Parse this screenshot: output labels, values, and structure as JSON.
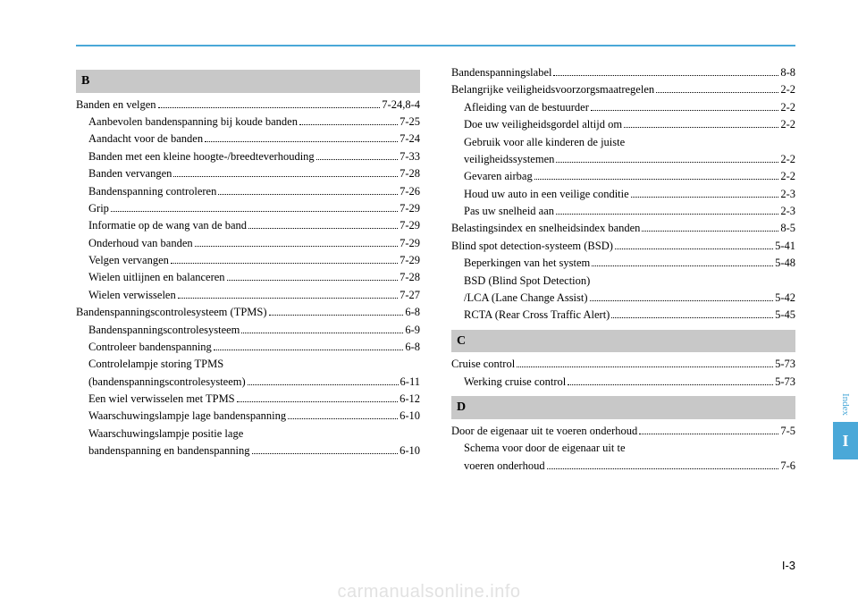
{
  "sideTab": {
    "indexLabel": "Index",
    "letter": "I"
  },
  "pageNumber": "I-3",
  "watermark": "carmanualsonline.info",
  "left": {
    "sectionB": {
      "letter": "B"
    },
    "entries": [
      {
        "label": "Banden en velgen",
        "page": "7-24,8-4",
        "sub": false
      },
      {
        "label": "Aanbevolen bandenspanning bij koude banden",
        "page": "7-25",
        "sub": true
      },
      {
        "label": "Aandacht voor de banden",
        "page": "7-24",
        "sub": true
      },
      {
        "label": "Banden met een kleine hoogte-/breedteverhouding",
        "page": "7-33",
        "sub": true
      },
      {
        "label": "Banden vervangen",
        "page": "7-28",
        "sub": true
      },
      {
        "label": "Bandenspanning controleren",
        "page": "7-26",
        "sub": true
      },
      {
        "label": "Grip",
        "page": "7-29",
        "sub": true
      },
      {
        "label": "Informatie op de wang van de band",
        "page": "7-29",
        "sub": true
      },
      {
        "label": "Onderhoud van banden",
        "page": "7-29",
        "sub": true
      },
      {
        "label": "Velgen vervangen",
        "page": "7-29",
        "sub": true
      },
      {
        "label": "Wielen uitlijnen en balanceren",
        "page": "7-28",
        "sub": true
      },
      {
        "label": "Wielen verwisselen",
        "page": "7-27",
        "sub": true
      },
      {
        "label": "Bandenspanningscontrolesysteem (TPMS)",
        "page": "6-8",
        "sub": false
      },
      {
        "label": "Bandenspanningscontrolesysteem",
        "page": "6-9",
        "sub": true
      },
      {
        "label": "Controleer bandenspanning",
        "page": "6-8",
        "sub": true
      }
    ],
    "multiline1": {
      "line1": "Controlelampje storing TPMS",
      "line2": "(bandenspanningscontrolesysteem)",
      "page": "6-11"
    },
    "entries2": [
      {
        "label": "Een wiel verwisselen met TPMS",
        "page": "6-12",
        "sub": true
      },
      {
        "label": "Waarschuwingslampje lage bandenspanning",
        "page": "6-10",
        "sub": true
      }
    ],
    "multiline2": {
      "line1": "Waarschuwingslampje positie lage",
      "line2": "bandenspanning en bandenspanning",
      "page": "6-10"
    }
  },
  "right": {
    "entriesTop": [
      {
        "label": "Bandenspanningslabel",
        "page": "8-8",
        "sub": false
      },
      {
        "label": "Belangrijke veiligheidsvoorzorgsmaatregelen",
        "page": "2-2",
        "sub": false
      },
      {
        "label": "Afleiding van de bestuurder",
        "page": "2-2",
        "sub": true
      },
      {
        "label": "Doe uw veiligheidsgordel altijd om",
        "page": "2-2",
        "sub": true
      }
    ],
    "multilineTop": {
      "line1": "Gebruik voor alle kinderen de juiste",
      "line2": "veiligheidssystemen",
      "page": "2-2"
    },
    "entriesMid": [
      {
        "label": "Gevaren airbag",
        "page": "2-2",
        "sub": true
      },
      {
        "label": "Houd uw auto in een veilige conditie",
        "page": "2-3",
        "sub": true
      },
      {
        "label": "Pas uw snelheid aan",
        "page": "2-3",
        "sub": true
      },
      {
        "label": "Belastingsindex en snelheidsindex banden",
        "page": "8-5",
        "sub": false
      },
      {
        "label": "Blind spot detection-systeem (BSD)",
        "page": "5-41",
        "sub": false
      },
      {
        "label": "Beperkingen van het system",
        "page": "5-48",
        "sub": true
      }
    ],
    "multilineMid": {
      "line1": "BSD (Blind Spot Detection)",
      "line2": "/LCA (Lane Change Assist)",
      "page": "5-42"
    },
    "entriesMid2": [
      {
        "label": "RCTA (Rear Cross Traffic Alert)",
        "page": "5-45",
        "sub": true
      }
    ],
    "sectionC": {
      "letter": "C"
    },
    "entriesC": [
      {
        "label": "Cruise control",
        "page": "5-73",
        "sub": false
      },
      {
        "label": "Werking cruise control",
        "page": "5-73",
        "sub": true
      }
    ],
    "sectionD": {
      "letter": "D"
    },
    "entriesD": [
      {
        "label": "Door de eigenaar uit te voeren onderhoud",
        "page": "7-5",
        "sub": false
      }
    ],
    "multilineD": {
      "line1": "Schema voor door de eigenaar uit te",
      "line2": "voeren onderhoud",
      "page": "7-6"
    }
  }
}
